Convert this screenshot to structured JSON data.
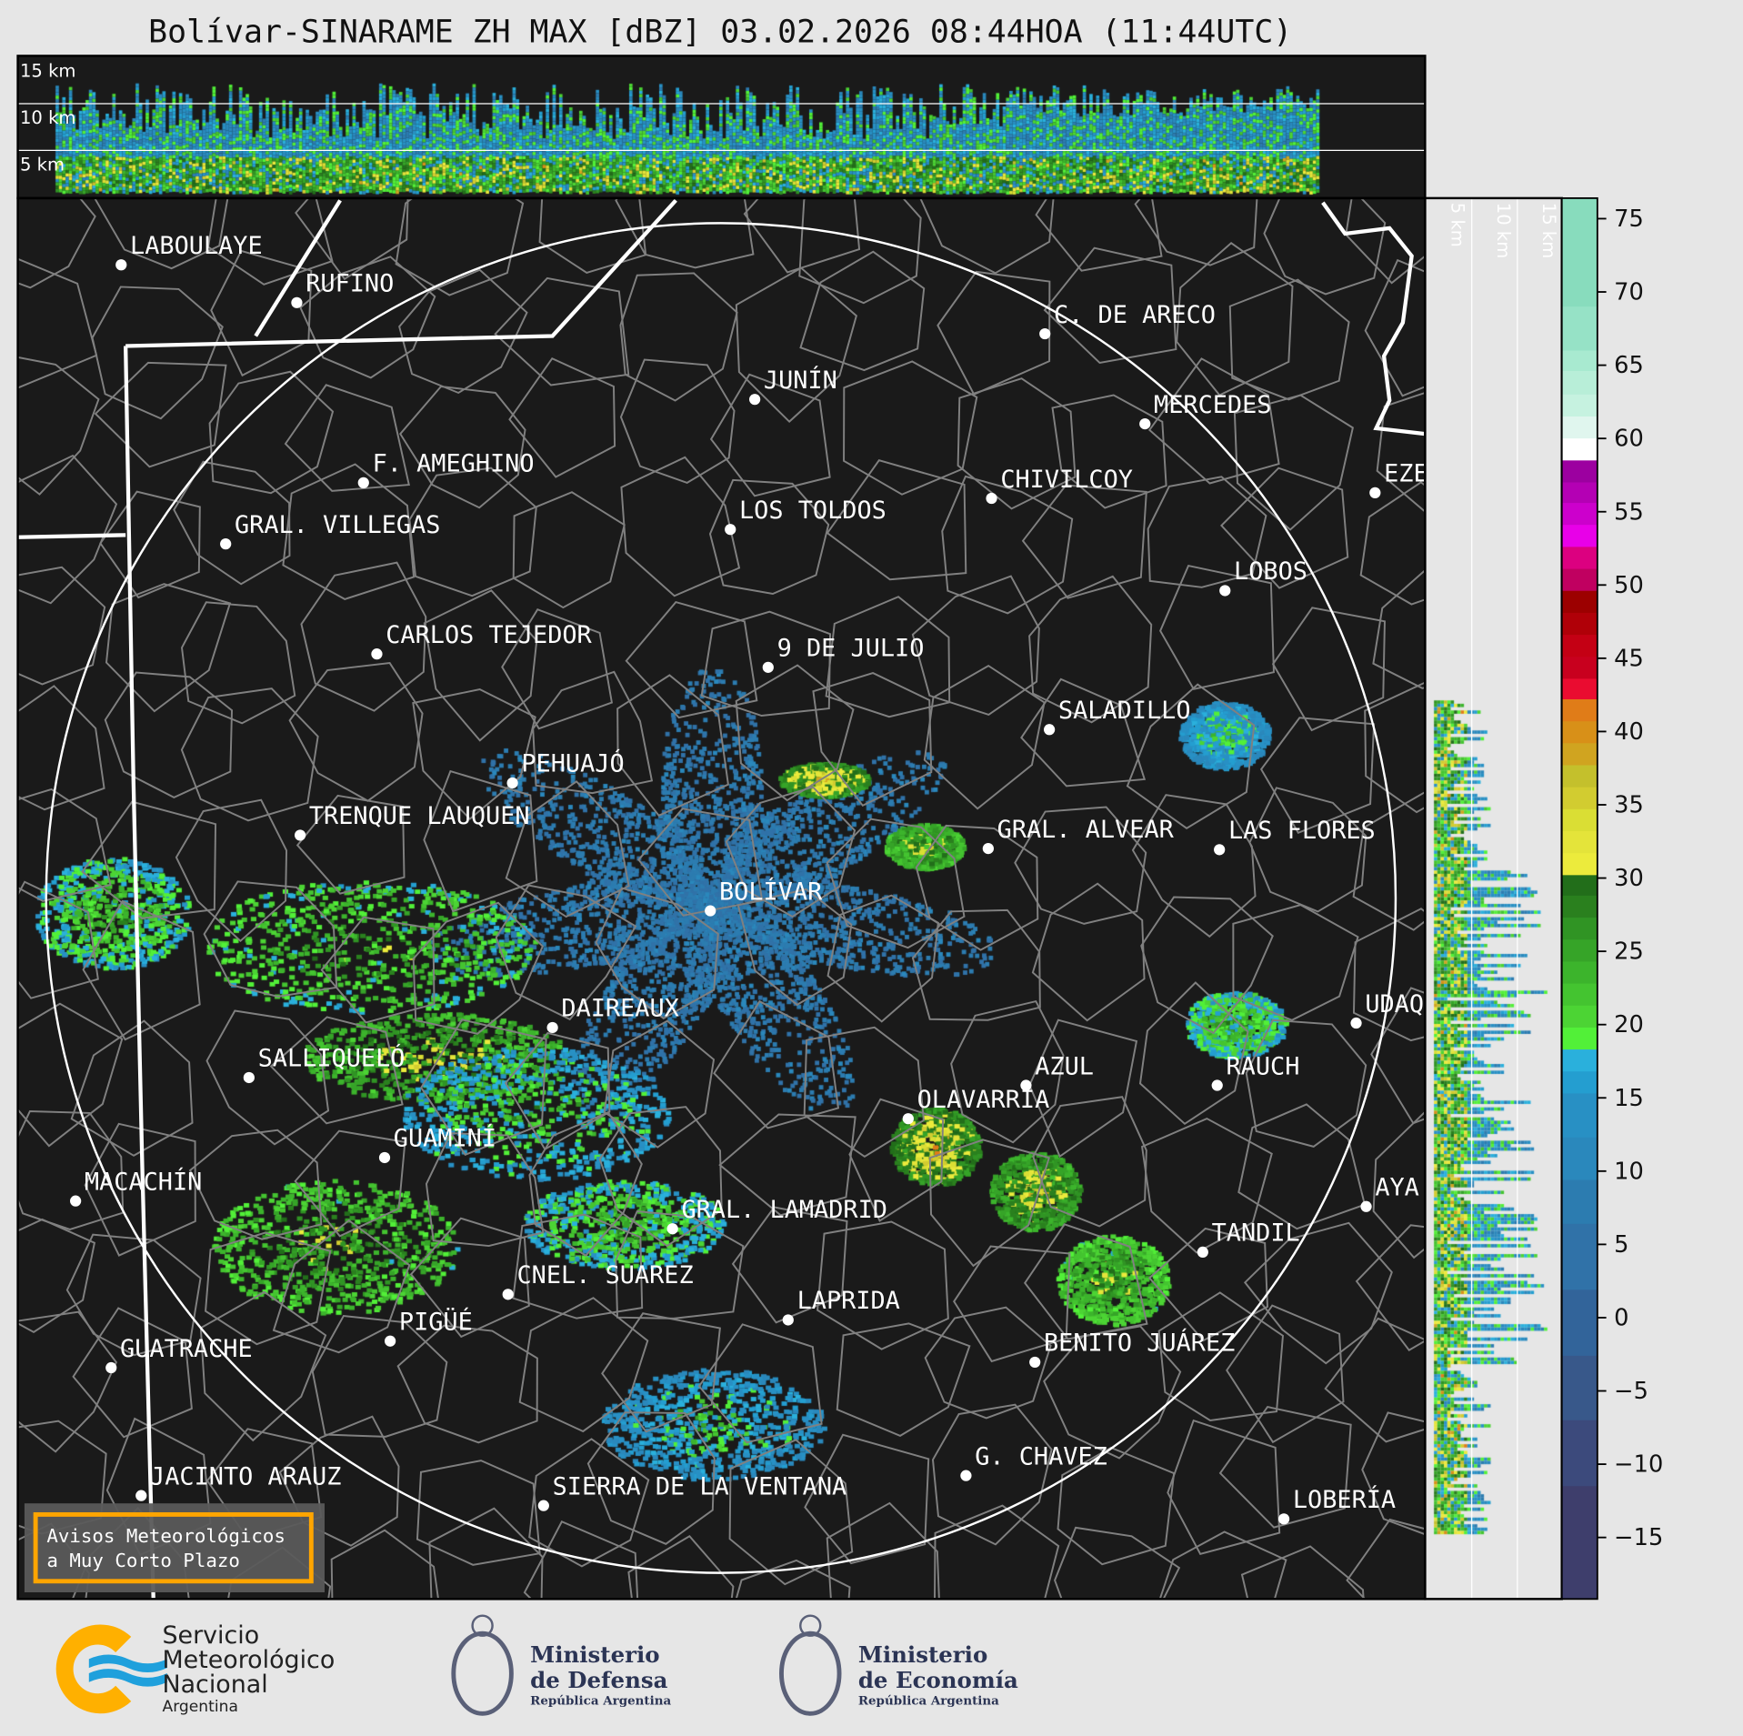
{
  "title": "Bolívar-SINARAME ZH MAX [dBZ] 03.02.2026 08:44HOA (11:44UTC)",
  "top_section": {
    "labels": [
      "15 km",
      "10 km",
      "5 km"
    ]
  },
  "side_section": {
    "labels": [
      "5 km",
      "10 km",
      "15 km"
    ]
  },
  "radar_site": "BOLÍVAR",
  "cities": [
    "LABOULAYE",
    "RUFINO",
    "C. DE ARECO",
    "JUNÍN",
    "MERCEDES",
    "F. AMEGHINO",
    "CHIVILCOY",
    "EZE",
    "GRAL. VILLEGAS",
    "LOS TOLDOS",
    "LOBOS",
    "CARLOS TEJEDOR",
    "9 DE JULIO",
    "SALADILLO",
    "PEHUAJÓ",
    "TRENQUE LAUQUEN",
    "GRAL. ALVEAR",
    "LAS FLORES",
    "BOLÍVAR",
    "DAIREAUX",
    "UDAQ",
    "SALLIQUELÓ",
    "AZUL",
    "RAUCH",
    "OLAVARRÍA",
    "GUAMINÍ",
    "MACACHÍN",
    "AYA",
    "GRAL. LAMADRID",
    "TANDIL",
    "CNEL. SUAREZ",
    "LAPRIDA",
    "PIGÜÉ",
    "BENITO JUÁREZ",
    "GUATRACHE",
    "G. CHAVEZ",
    "JACINTO ARAUZ",
    "SIERRA DE LA VENTANA",
    "LOBERÍA"
  ],
  "warning_box": {
    "line1": "Avisos Meteorológicos",
    "line2": "a Muy Corto Plazo",
    "border_color": "#ffa500"
  },
  "colorbar": {
    "unit": "dBZ",
    "range": [
      -19.2,
      76.4
    ],
    "ticks": [
      75,
      70,
      65,
      60,
      55,
      50,
      45,
      40,
      35,
      30,
      25,
      20,
      15,
      10,
      5,
      0,
      -5,
      -10,
      -15
    ],
    "tick_labels": [
      "75",
      "70",
      "65",
      "60",
      "55",
      "50",
      "45",
      "40",
      "35",
      "30",
      "25",
      "20",
      "15",
      "10",
      "5",
      "0",
      "−5",
      "−10",
      "−15"
    ],
    "bins": [
      [
        69.0,
        76.4,
        "#88dcbd"
      ],
      [
        66.0,
        69.0,
        "#96e2c6"
      ],
      [
        64.6,
        66.0,
        "#a8ead0"
      ],
      [
        63.0,
        64.6,
        "#b8eed8"
      ],
      [
        61.5,
        63.0,
        "#c6f2e0"
      ],
      [
        60.0,
        61.5,
        "#e0f6ee"
      ],
      [
        58.5,
        60.0,
        "#ffffff"
      ],
      [
        57.0,
        58.5,
        "#9c00a0"
      ],
      [
        55.6,
        57.0,
        "#b400b4"
      ],
      [
        54.1,
        55.6,
        "#cc00cc"
      ],
      [
        52.6,
        54.1,
        "#e800e8"
      ],
      [
        51.1,
        52.6,
        "#dc0080"
      ],
      [
        49.6,
        51.1,
        "#c00060"
      ],
      [
        48.1,
        49.6,
        "#9c0000"
      ],
      [
        46.6,
        48.1,
        "#b00008"
      ],
      [
        45.1,
        46.6,
        "#c40014"
      ],
      [
        43.6,
        45.1,
        "#c8001e"
      ],
      [
        42.2,
        43.6,
        "#ea0c30"
      ],
      [
        40.7,
        42.2,
        "#e07c18"
      ],
      [
        39.2,
        40.7,
        "#d89018"
      ],
      [
        37.7,
        39.2,
        "#d0a420"
      ],
      [
        36.2,
        37.7,
        "#c4c02c"
      ],
      [
        34.7,
        36.2,
        "#d2cc30"
      ],
      [
        33.2,
        34.7,
        "#dade34"
      ],
      [
        31.7,
        33.2,
        "#e4e43a"
      ],
      [
        30.2,
        31.7,
        "#eceb3c"
      ],
      [
        28.8,
        30.2,
        "#226e1a"
      ],
      [
        27.3,
        28.8,
        "#2a801e"
      ],
      [
        25.8,
        27.3,
        "#309424"
      ],
      [
        24.3,
        25.8,
        "#36a428"
      ],
      [
        22.8,
        24.3,
        "#3cb42c"
      ],
      [
        21.3,
        22.8,
        "#44c430"
      ],
      [
        19.8,
        21.3,
        "#4cd434"
      ],
      [
        18.3,
        19.8,
        "#52f038"
      ],
      [
        16.8,
        18.3,
        "#2ab0dc"
      ],
      [
        15.3,
        16.8,
        "#249ed0"
      ],
      [
        12.3,
        15.3,
        "#2890c4"
      ],
      [
        9.4,
        12.3,
        "#2a88bc"
      ],
      [
        6.4,
        9.4,
        "#2c7cb0"
      ],
      [
        1.9,
        6.4,
        "#3072a8"
      ],
      [
        -2.6,
        1.9,
        "#32649a"
      ],
      [
        -7.0,
        -2.6,
        "#38588a"
      ],
      [
        -11.5,
        -7.0,
        "#3c4a7c"
      ],
      [
        -19.2,
        -11.5,
        "#3e3e6c"
      ]
    ]
  },
  "logos": {
    "smn": {
      "line1": "Servicio",
      "line2": "Meteorológico",
      "line3": "Nacional",
      "line4": "Argentina"
    },
    "defensa": {
      "line1": "Ministerio",
      "line2": "de Defensa",
      "line3": "República Argentina"
    },
    "economia": {
      "line1": "Ministerio",
      "line2": "de Economía",
      "line3": "República Argentina"
    }
  },
  "colors": {
    "background": "#e6e6e6",
    "map": "#1a1a1a",
    "borders": "#808080",
    "province_borders": "#ffffff",
    "smn_orange": "#ffb000",
    "smn_blue": "#1fa0dc"
  }
}
